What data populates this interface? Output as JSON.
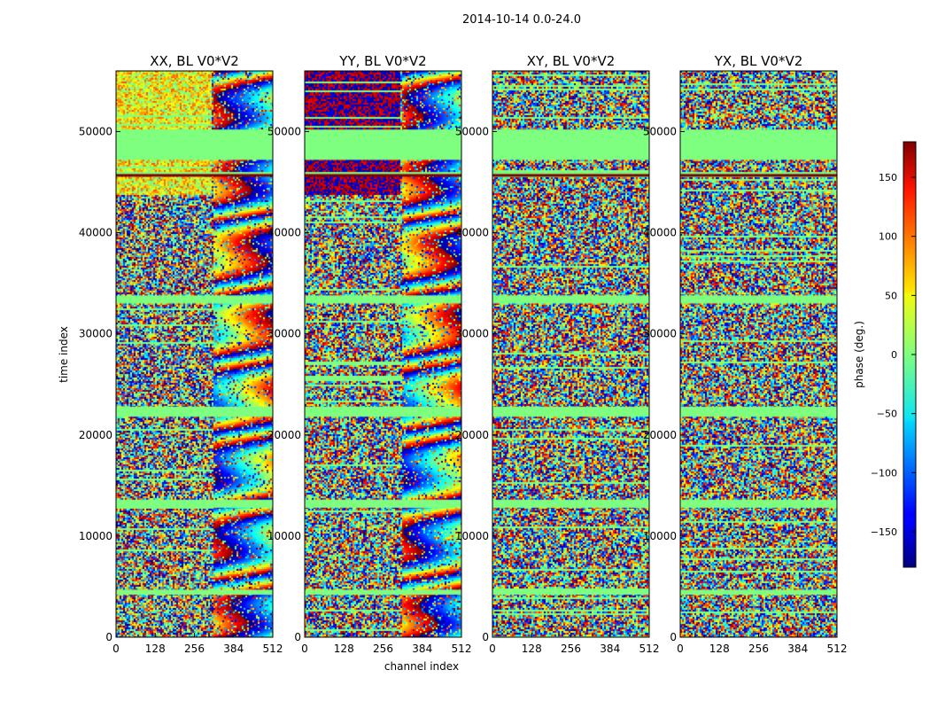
{
  "figure": {
    "suptitle": "2014-10-14 0.0-24.0"
  },
  "chart_data": {
    "type": "heatmap",
    "xlabel": "channel index",
    "ylabel": "time index",
    "xlim": [
      0,
      512
    ],
    "ylim": [
      0,
      56000
    ],
    "xticks": [
      0,
      128,
      256,
      384,
      512
    ],
    "yticks": [
      0,
      10000,
      20000,
      30000,
      40000,
      50000
    ],
    "panels": [
      {
        "title": "XX, BL V0*V2",
        "pol": "XX"
      },
      {
        "title": "YY, BL V0*V2",
        "pol": "YY"
      },
      {
        "title": "XY, BL V0*V2",
        "pol": "XY"
      },
      {
        "title": "YX, BL V0*V2",
        "pol": "YX"
      }
    ],
    "colorbar": {
      "label": "phase (deg.)",
      "vmin": -180,
      "vmax": 180,
      "ticks": [
        -150,
        -100,
        -50,
        0,
        50,
        100,
        150
      ],
      "colormap": "jet"
    },
    "flagged_bands_time_index": [
      [
        47200,
        50200
      ],
      [
        45600,
        46000
      ],
      [
        33000,
        33800
      ],
      [
        21800,
        22800
      ],
      [
        12800,
        13600
      ],
      [
        4200,
        4700
      ]
    ]
  },
  "colors": {
    "frame": "#000000",
    "flagged": "#7fff7f"
  }
}
